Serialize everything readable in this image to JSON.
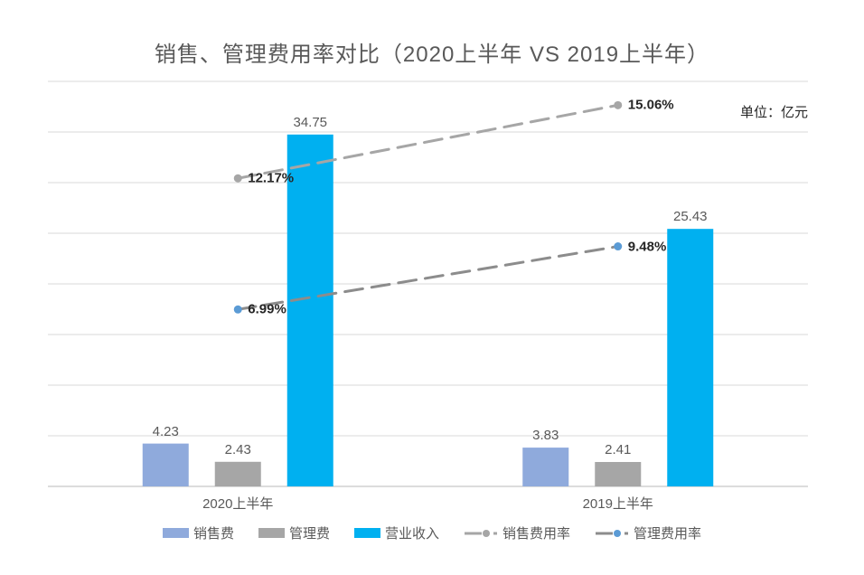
{
  "title": "销售、管理费用率对比（2020上半年  VS   2019上半年）",
  "unit_label": "单位：亿元",
  "chart_data": {
    "type": "combo-bar-line",
    "categories": [
      "2020上半年",
      "2019上半年"
    ],
    "bar_series": [
      {
        "name": "销售费",
        "color": "#8FAADC",
        "values": [
          4.23,
          3.83
        ]
      },
      {
        "name": "管理费",
        "color": "#A6A6A6",
        "values": [
          2.43,
          2.41
        ]
      },
      {
        "name": "营业收入",
        "color": "#00B0F0",
        "values": [
          34.75,
          25.43
        ]
      }
    ],
    "line_series": [
      {
        "name": "销售费用率",
        "line_color": "#A6A6A6",
        "marker_color": "#A6A6A6",
        "values": [
          12.17,
          15.06
        ],
        "labels": [
          "12.17%",
          "15.06%"
        ],
        "axis": "secondary"
      },
      {
        "name": "管理费用率",
        "line_color": "#8C8C8C",
        "marker_color": "#5B9BD5",
        "values": [
          6.99,
          9.48
        ],
        "labels": [
          "6.99%",
          "9.48%"
        ],
        "axis": "secondary"
      }
    ],
    "primary_axis": {
      "min": 0,
      "max": 40,
      "step": 5,
      "labels_visible": false,
      "unit": "亿元"
    },
    "secondary_axis": {
      "min": 0,
      "max": 16,
      "labels_visible": false,
      "unit": "%"
    },
    "grid": true,
    "legend_position": "bottom",
    "styles": {
      "gridline_color": "#D9D9D9",
      "axis_line_color": "#C8C8C8",
      "title_color": "#595959",
      "unit_label_color": "#262626",
      "value_label_color": "#595959",
      "point_label_color": "#262626",
      "category_label_color": "#595959",
      "legend_label_color": "#595959",
      "background": "#FFFFFF",
      "line_dash": "20 10",
      "line_width": 3
    }
  }
}
